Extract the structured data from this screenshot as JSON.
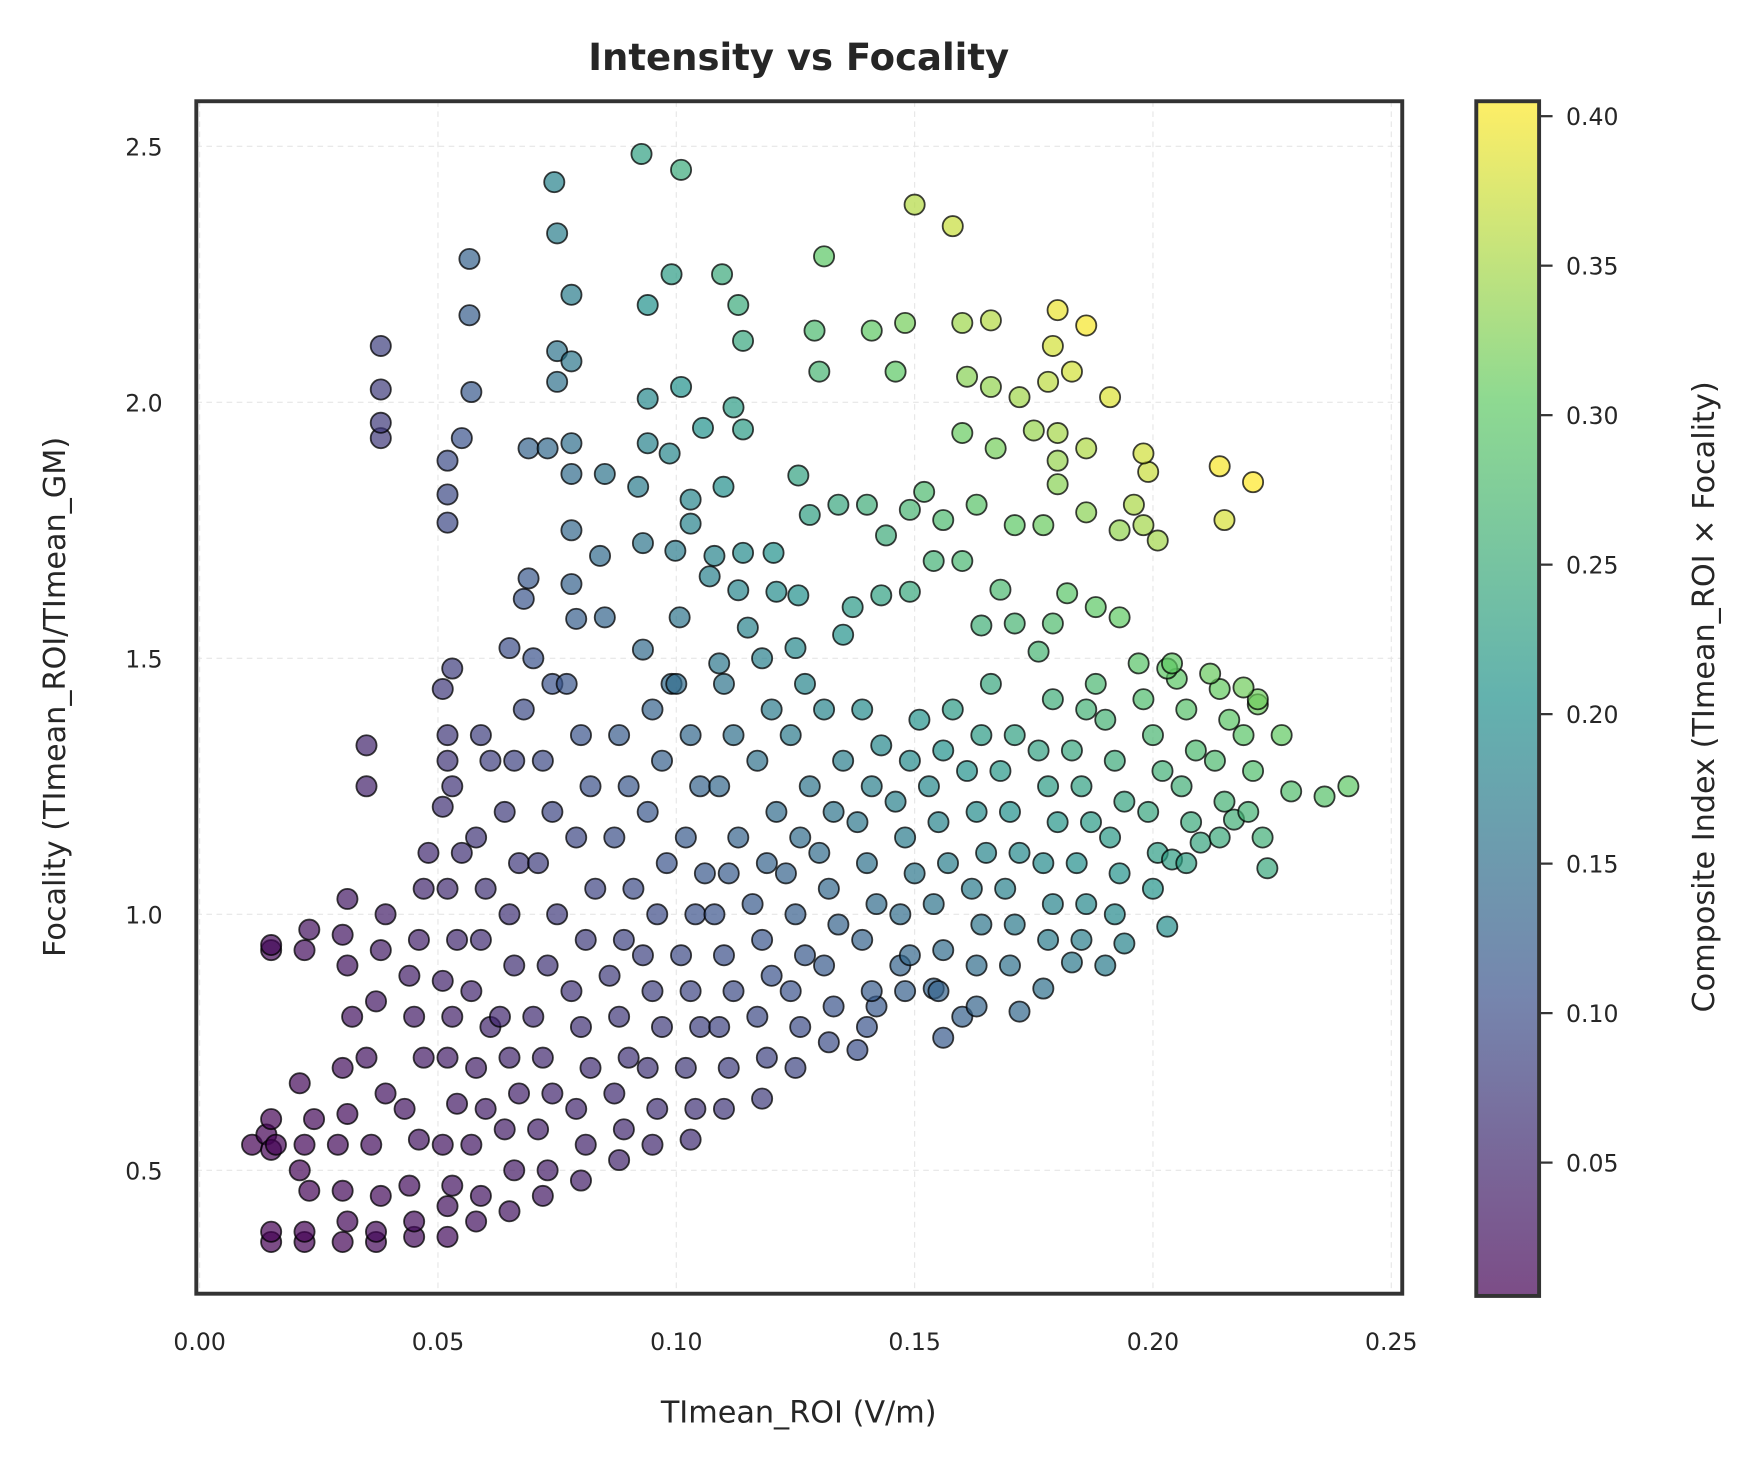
{
  "chart_data": {
    "type": "scatter",
    "title": "Intensity vs Focality",
    "xlabel": "TImean_ROI (V/m)",
    "ylabel": "Focality (TImean_ROI/TImean_GM)",
    "xlim": [
      -0.0007,
      0.2523
    ],
    "ylim": [
      0.259,
      2.588
    ],
    "xticks": [
      "0.00",
      "0.05",
      "0.10",
      "0.15",
      "0.20",
      "0.25"
    ],
    "yticks": [
      "0.5",
      "1.0",
      "1.5",
      "2.0",
      "2.5"
    ],
    "grid": true,
    "colormap": "viridis",
    "marker_alpha": 0.7,
    "marker_edge_color": "#000000",
    "colorbar": {
      "label": "Composite Index (TImean_ROI × Focality)",
      "range": [
        0.0054,
        0.405
      ],
      "ticks": [
        "0.05",
        "0.10",
        "0.15",
        "0.20",
        "0.25",
        "0.30",
        "0.35",
        "0.40"
      ]
    },
    "color_value": "x*y",
    "points": [
      [
        0.0927,
        2.485
      ],
      [
        0.101,
        2.454
      ],
      [
        0.0744,
        2.43
      ],
      [
        0.075,
        2.33
      ],
      [
        0.15,
        2.386
      ],
      [
        0.158,
        2.344
      ],
      [
        0.131,
        2.285
      ],
      [
        0.0566,
        2.28
      ],
      [
        0.078,
        2.21
      ],
      [
        0.099,
        2.25
      ],
      [
        0.1096,
        2.25
      ],
      [
        0.113,
        2.19
      ],
      [
        0.094,
        2.19
      ],
      [
        0.0566,
        2.17
      ],
      [
        0.038,
        2.11
      ],
      [
        0.129,
        2.14
      ],
      [
        0.141,
        2.14
      ],
      [
        0.148,
        2.155
      ],
      [
        0.16,
        2.155
      ],
      [
        0.166,
        2.16
      ],
      [
        0.18,
        2.18
      ],
      [
        0.186,
        2.15
      ],
      [
        0.179,
        2.11
      ],
      [
        0.114,
        2.12
      ],
      [
        0.075,
        2.1
      ],
      [
        0.078,
        2.08
      ],
      [
        0.057,
        2.02
      ],
      [
        0.038,
        2.025
      ],
      [
        0.101,
        2.03
      ],
      [
        0.13,
        2.06
      ],
      [
        0.183,
        2.06
      ],
      [
        0.191,
        2.01
      ],
      [
        0.146,
        2.06
      ],
      [
        0.161,
        2.05
      ],
      [
        0.166,
        2.03
      ],
      [
        0.172,
        2.01
      ],
      [
        0.178,
        2.04
      ],
      [
        0.094,
        2.007
      ],
      [
        0.075,
        2.04
      ],
      [
        0.038,
        1.93
      ],
      [
        0.038,
        1.96
      ],
      [
        0.055,
        1.93
      ],
      [
        0.214,
        1.875
      ],
      [
        0.221,
        1.844
      ],
      [
        0.215,
        1.77
      ],
      [
        0.198,
        1.9
      ],
      [
        0.199,
        1.864
      ],
      [
        0.196,
        1.8
      ],
      [
        0.198,
        1.76
      ],
      [
        0.201,
        1.73
      ],
      [
        0.193,
        1.75
      ],
      [
        0.186,
        1.785
      ],
      [
        0.18,
        1.886
      ],
      [
        0.186,
        1.91
      ],
      [
        0.18,
        1.94
      ],
      [
        0.175,
        1.945
      ],
      [
        0.167,
        1.91
      ],
      [
        0.16,
        1.94
      ],
      [
        0.18,
        1.84
      ],
      [
        0.177,
        1.76
      ],
      [
        0.171,
        1.76
      ],
      [
        0.163,
        1.8
      ],
      [
        0.152,
        1.825
      ],
      [
        0.156,
        1.77
      ],
      [
        0.149,
        1.79
      ],
      [
        0.144,
        1.74
      ],
      [
        0.14,
        1.8
      ],
      [
        0.134,
        1.8
      ],
      [
        0.128,
        1.78
      ],
      [
        0.1256,
        1.857
      ],
      [
        0.114,
        1.947
      ],
      [
        0.112,
        1.99
      ],
      [
        0.1056,
        1.95
      ],
      [
        0.0986,
        1.9
      ],
      [
        0.094,
        1.92
      ],
      [
        0.078,
        1.92
      ],
      [
        0.073,
        1.91
      ],
      [
        0.069,
        1.91
      ],
      [
        0.078,
        1.86
      ],
      [
        0.085,
        1.86
      ],
      [
        0.078,
        1.75
      ],
      [
        0.052,
        1.765
      ],
      [
        0.052,
        1.82
      ],
      [
        0.052,
        1.886
      ],
      [
        0.092,
        1.835
      ],
      [
        0.103,
        1.81
      ],
      [
        0.1099,
        1.835
      ],
      [
        0.103,
        1.763
      ],
      [
        0.0998,
        1.71
      ],
      [
        0.108,
        1.7
      ],
      [
        0.114,
        1.706
      ],
      [
        0.1204,
        1.706
      ],
      [
        0.121,
        1.63
      ],
      [
        0.1256,
        1.623
      ],
      [
        0.113,
        1.633
      ],
      [
        0.107,
        1.66
      ],
      [
        0.093,
        1.725
      ],
      [
        0.084,
        1.7
      ],
      [
        0.069,
        1.656
      ],
      [
        0.068,
        1.616
      ],
      [
        0.078,
        1.645
      ],
      [
        0.079,
        1.577
      ],
      [
        0.085,
        1.58
      ],
      [
        0.1007,
        1.58
      ],
      [
        0.093,
        1.517
      ],
      [
        0.109,
        1.49
      ],
      [
        0.115,
        1.56
      ],
      [
        0.135,
        1.546
      ],
      [
        0.137,
        1.6
      ],
      [
        0.143,
        1.623
      ],
      [
        0.149,
        1.63
      ],
      [
        0.154,
        1.69
      ],
      [
        0.16,
        1.69
      ],
      [
        0.168,
        1.634
      ],
      [
        0.164,
        1.564
      ],
      [
        0.171,
        1.568
      ],
      [
        0.176,
        1.513
      ],
      [
        0.179,
        1.568
      ],
      [
        0.182,
        1.627
      ],
      [
        0.188,
        1.6
      ],
      [
        0.193,
        1.58
      ],
      [
        0.197,
        1.49
      ],
      [
        0.204,
        1.49
      ],
      [
        0.212,
        1.47
      ],
      [
        0.219,
        1.443
      ],
      [
        0.222,
        1.41
      ],
      [
        0.227,
        1.35
      ],
      [
        0.229,
        1.24
      ],
      [
        0.236,
        1.23
      ],
      [
        0.241,
        1.25
      ],
      [
        0.223,
        1.15
      ],
      [
        0.224,
        1.09
      ],
      [
        0.217,
        1.185
      ],
      [
        0.21,
        1.14
      ],
      [
        0.204,
        1.107
      ],
      [
        0.203,
        0.976
      ],
      [
        0.194,
        0.943
      ],
      [
        0.19,
        0.9
      ],
      [
        0.183,
        0.906
      ],
      [
        0.177,
        0.855
      ],
      [
        0.172,
        0.81
      ],
      [
        0.163,
        0.82
      ],
      [
        0.16,
        0.8
      ],
      [
        0.156,
        0.759
      ],
      [
        0.154,
        0.855
      ],
      [
        0.147,
        0.9
      ],
      [
        0.138,
        0.735
      ],
      [
        0.142,
        0.82
      ],
      [
        0.015,
        0.36
      ],
      [
        0.015,
        0.38
      ],
      [
        0.015,
        0.54
      ],
      [
        0.016,
        0.55
      ],
      [
        0.014,
        0.57
      ],
      [
        0.015,
        0.6
      ],
      [
        0.015,
        0.93
      ],
      [
        0.015,
        0.94
      ],
      [
        0.011,
        0.55
      ],
      [
        0.022,
        0.36
      ],
      [
        0.022,
        0.38
      ],
      [
        0.023,
        0.46
      ],
      [
        0.021,
        0.5
      ],
      [
        0.022,
        0.55
      ],
      [
        0.024,
        0.6
      ],
      [
        0.021,
        0.67
      ],
      [
        0.022,
        0.93
      ],
      [
        0.023,
        0.97
      ],
      [
        0.03,
        0.36
      ],
      [
        0.031,
        0.4
      ],
      [
        0.03,
        0.46
      ],
      [
        0.029,
        0.55
      ],
      [
        0.031,
        0.61
      ],
      [
        0.03,
        0.7
      ],
      [
        0.032,
        0.8
      ],
      [
        0.031,
        0.9
      ],
      [
        0.03,
        0.96
      ],
      [
        0.031,
        1.03
      ],
      [
        0.037,
        0.36
      ],
      [
        0.037,
        0.38
      ],
      [
        0.038,
        0.45
      ],
      [
        0.036,
        0.55
      ],
      [
        0.039,
        0.65
      ],
      [
        0.035,
        0.72
      ],
      [
        0.037,
        0.83
      ],
      [
        0.038,
        0.93
      ],
      [
        0.039,
        1.0
      ],
      [
        0.035,
        1.25
      ],
      [
        0.035,
        1.33
      ],
      [
        0.045,
        0.37
      ],
      [
        0.045,
        0.4
      ],
      [
        0.044,
        0.47
      ],
      [
        0.046,
        0.56
      ],
      [
        0.043,
        0.62
      ],
      [
        0.047,
        0.72
      ],
      [
        0.045,
        0.8
      ],
      [
        0.044,
        0.88
      ],
      [
        0.046,
        0.95
      ],
      [
        0.047,
        1.05
      ],
      [
        0.048,
        1.12
      ],
      [
        0.052,
        0.37
      ],
      [
        0.052,
        0.43
      ],
      [
        0.053,
        0.47
      ],
      [
        0.051,
        0.55
      ],
      [
        0.054,
        0.63
      ],
      [
        0.052,
        0.72
      ],
      [
        0.053,
        0.8
      ],
      [
        0.051,
        0.87
      ],
      [
        0.054,
        0.95
      ],
      [
        0.052,
        1.05
      ],
      [
        0.055,
        1.12
      ],
      [
        0.051,
        1.21
      ],
      [
        0.053,
        1.25
      ],
      [
        0.052,
        1.3
      ],
      [
        0.052,
        1.35
      ],
      [
        0.051,
        1.44
      ],
      [
        0.053,
        1.48
      ],
      [
        0.058,
        0.4
      ],
      [
        0.059,
        0.45
      ],
      [
        0.057,
        0.55
      ],
      [
        0.06,
        0.62
      ],
      [
        0.058,
        0.7
      ],
      [
        0.061,
        0.78
      ],
      [
        0.057,
        0.85
      ],
      [
        0.059,
        0.95
      ],
      [
        0.06,
        1.05
      ],
      [
        0.058,
        1.15
      ],
      [
        0.061,
        1.3
      ],
      [
        0.059,
        1.35
      ],
      [
        0.065,
        0.42
      ],
      [
        0.066,
        0.5
      ],
      [
        0.064,
        0.58
      ],
      [
        0.067,
        0.65
      ],
      [
        0.065,
        0.72
      ],
      [
        0.063,
        0.8
      ],
      [
        0.066,
        0.9
      ],
      [
        0.065,
        1.0
      ],
      [
        0.067,
        1.1
      ],
      [
        0.064,
        1.2
      ],
      [
        0.066,
        1.3
      ],
      [
        0.068,
        1.4
      ],
      [
        0.065,
        1.52
      ],
      [
        0.072,
        0.45
      ],
      [
        0.073,
        0.5
      ],
      [
        0.071,
        0.58
      ],
      [
        0.074,
        0.65
      ],
      [
        0.072,
        0.72
      ],
      [
        0.07,
        0.8
      ],
      [
        0.073,
        0.9
      ],
      [
        0.075,
        1.0
      ],
      [
        0.071,
        1.1
      ],
      [
        0.074,
        1.2
      ],
      [
        0.072,
        1.3
      ],
      [
        0.074,
        1.45
      ],
      [
        0.07,
        1.5
      ],
      [
        0.08,
        0.48
      ],
      [
        0.081,
        0.55
      ],
      [
        0.079,
        0.62
      ],
      [
        0.082,
        0.7
      ],
      [
        0.08,
        0.78
      ],
      [
        0.078,
        0.85
      ],
      [
        0.081,
        0.95
      ],
      [
        0.083,
        1.05
      ],
      [
        0.079,
        1.15
      ],
      [
        0.082,
        1.25
      ],
      [
        0.08,
        1.35
      ],
      [
        0.077,
        1.45
      ],
      [
        0.088,
        0.52
      ],
      [
        0.089,
        0.58
      ],
      [
        0.087,
        0.65
      ],
      [
        0.09,
        0.72
      ],
      [
        0.088,
        0.8
      ],
      [
        0.086,
        0.88
      ],
      [
        0.089,
        0.95
      ],
      [
        0.091,
        1.05
      ],
      [
        0.087,
        1.15
      ],
      [
        0.09,
        1.25
      ],
      [
        0.088,
        1.35
      ],
      [
        0.095,
        0.55
      ],
      [
        0.096,
        0.62
      ],
      [
        0.094,
        0.7
      ],
      [
        0.097,
        0.78
      ],
      [
        0.095,
        0.85
      ],
      [
        0.093,
        0.92
      ],
      [
        0.096,
        1.0
      ],
      [
        0.098,
        1.1
      ],
      [
        0.094,
        1.2
      ],
      [
        0.097,
        1.3
      ],
      [
        0.095,
        1.4
      ],
      [
        0.099,
        1.45
      ],
      [
        0.103,
        0.56
      ],
      [
        0.104,
        0.62
      ],
      [
        0.102,
        0.7
      ],
      [
        0.105,
        0.78
      ],
      [
        0.103,
        0.85
      ],
      [
        0.101,
        0.92
      ],
      [
        0.104,
        1.0
      ],
      [
        0.106,
        1.08
      ],
      [
        0.102,
        1.15
      ],
      [
        0.105,
        1.25
      ],
      [
        0.103,
        1.35
      ],
      [
        0.1,
        1.45
      ],
      [
        0.11,
        0.62
      ],
      [
        0.111,
        0.7
      ],
      [
        0.109,
        0.78
      ],
      [
        0.112,
        0.85
      ],
      [
        0.11,
        0.92
      ],
      [
        0.108,
        1.0
      ],
      [
        0.111,
        1.08
      ],
      [
        0.113,
        1.15
      ],
      [
        0.109,
        1.25
      ],
      [
        0.112,
        1.35
      ],
      [
        0.11,
        1.45
      ],
      [
        0.118,
        0.64
      ],
      [
        0.119,
        0.72
      ],
      [
        0.117,
        0.8
      ],
      [
        0.12,
        0.88
      ],
      [
        0.118,
        0.95
      ],
      [
        0.116,
        1.02
      ],
      [
        0.119,
        1.1
      ],
      [
        0.121,
        1.2
      ],
      [
        0.117,
        1.3
      ],
      [
        0.12,
        1.4
      ],
      [
        0.118,
        1.5
      ],
      [
        0.125,
        0.7
      ],
      [
        0.126,
        0.78
      ],
      [
        0.124,
        0.85
      ],
      [
        0.127,
        0.92
      ],
      [
        0.125,
        1.0
      ],
      [
        0.123,
        1.08
      ],
      [
        0.126,
        1.15
      ],
      [
        0.128,
        1.25
      ],
      [
        0.124,
        1.35
      ],
      [
        0.127,
        1.45
      ],
      [
        0.125,
        1.52
      ],
      [
        0.132,
        0.75
      ],
      [
        0.133,
        0.82
      ],
      [
        0.131,
        0.9
      ],
      [
        0.134,
        0.98
      ],
      [
        0.132,
        1.05
      ],
      [
        0.13,
        1.12
      ],
      [
        0.133,
        1.2
      ],
      [
        0.135,
        1.3
      ],
      [
        0.131,
        1.4
      ],
      [
        0.14,
        0.78
      ],
      [
        0.141,
        0.85
      ],
      [
        0.139,
        0.95
      ],
      [
        0.142,
        1.02
      ],
      [
        0.14,
        1.1
      ],
      [
        0.138,
        1.18
      ],
      [
        0.141,
        1.25
      ],
      [
        0.143,
        1.33
      ],
      [
        0.139,
        1.4
      ],
      [
        0.148,
        0.85
      ],
      [
        0.149,
        0.92
      ],
      [
        0.147,
        1.0
      ],
      [
        0.15,
        1.08
      ],
      [
        0.148,
        1.15
      ],
      [
        0.146,
        1.22
      ],
      [
        0.149,
        1.3
      ],
      [
        0.151,
        1.38
      ],
      [
        0.155,
        0.85
      ],
      [
        0.156,
        0.93
      ],
      [
        0.154,
        1.02
      ],
      [
        0.157,
        1.1
      ],
      [
        0.155,
        1.18
      ],
      [
        0.153,
        1.25
      ],
      [
        0.156,
        1.32
      ],
      [
        0.158,
        1.4
      ],
      [
        0.163,
        0.9
      ],
      [
        0.164,
        0.98
      ],
      [
        0.162,
        1.05
      ],
      [
        0.165,
        1.12
      ],
      [
        0.163,
        1.2
      ],
      [
        0.161,
        1.28
      ],
      [
        0.164,
        1.35
      ],
      [
        0.166,
        1.45
      ],
      [
        0.17,
        0.9
      ],
      [
        0.171,
        0.98
      ],
      [
        0.169,
        1.05
      ],
      [
        0.172,
        1.12
      ],
      [
        0.17,
        1.2
      ],
      [
        0.168,
        1.28
      ],
      [
        0.171,
        1.35
      ],
      [
        0.178,
        0.95
      ],
      [
        0.179,
        1.02
      ],
      [
        0.177,
        1.1
      ],
      [
        0.18,
        1.18
      ],
      [
        0.178,
        1.25
      ],
      [
        0.176,
        1.32
      ],
      [
        0.179,
        1.42
      ],
      [
        0.185,
        0.95
      ],
      [
        0.186,
        1.02
      ],
      [
        0.184,
        1.1
      ],
      [
        0.187,
        1.18
      ],
      [
        0.185,
        1.25
      ],
      [
        0.183,
        1.32
      ],
      [
        0.186,
        1.4
      ],
      [
        0.188,
        1.45
      ],
      [
        0.192,
        1.0
      ],
      [
        0.193,
        1.08
      ],
      [
        0.191,
        1.15
      ],
      [
        0.194,
        1.22
      ],
      [
        0.192,
        1.3
      ],
      [
        0.19,
        1.38
      ],
      [
        0.2,
        1.05
      ],
      [
        0.201,
        1.12
      ],
      [
        0.199,
        1.2
      ],
      [
        0.202,
        1.28
      ],
      [
        0.2,
        1.35
      ],
      [
        0.198,
        1.42
      ],
      [
        0.203,
        1.48
      ],
      [
        0.207,
        1.1
      ],
      [
        0.208,
        1.18
      ],
      [
        0.206,
        1.25
      ],
      [
        0.209,
        1.32
      ],
      [
        0.207,
        1.4
      ],
      [
        0.205,
        1.46
      ],
      [
        0.214,
        1.15
      ],
      [
        0.215,
        1.22
      ],
      [
        0.213,
        1.3
      ],
      [
        0.216,
        1.38
      ],
      [
        0.214,
        1.44
      ],
      [
        0.22,
        1.2
      ],
      [
        0.221,
        1.28
      ],
      [
        0.219,
        1.35
      ],
      [
        0.222,
        1.42
      ]
    ]
  }
}
